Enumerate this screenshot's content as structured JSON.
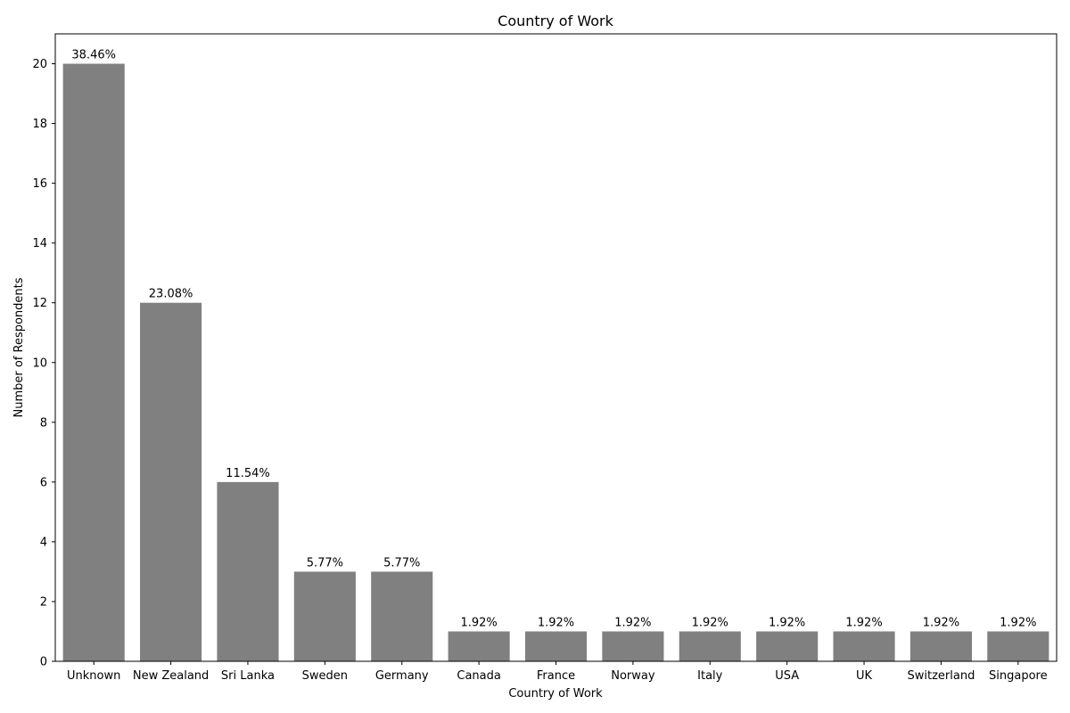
{
  "chart_data": {
    "type": "bar",
    "title": "Country of Work",
    "xlabel": "Country of Work",
    "ylabel": "Number of Respondents",
    "categories": [
      "Unknown",
      "New Zealand",
      "Sri Lanka",
      "Sweden",
      "Germany",
      "Canada",
      "France",
      "Norway",
      "Italy",
      "USA",
      "UK",
      "Switzerland",
      "Singapore"
    ],
    "values": [
      20,
      12,
      6,
      3,
      3,
      1,
      1,
      1,
      1,
      1,
      1,
      1,
      1
    ],
    "data_labels": [
      "38.46%",
      "23.08%",
      "11.54%",
      "5.77%",
      "5.77%",
      "1.92%",
      "1.92%",
      "1.92%",
      "1.92%",
      "1.92%",
      "1.92%",
      "1.92%",
      "1.92%"
    ],
    "ylim": [
      0,
      21
    ],
    "yticks": [
      0,
      2,
      4,
      6,
      8,
      10,
      12,
      14,
      16,
      18,
      20
    ],
    "bar_color": "#808080",
    "grid": false,
    "legend": "none"
  }
}
